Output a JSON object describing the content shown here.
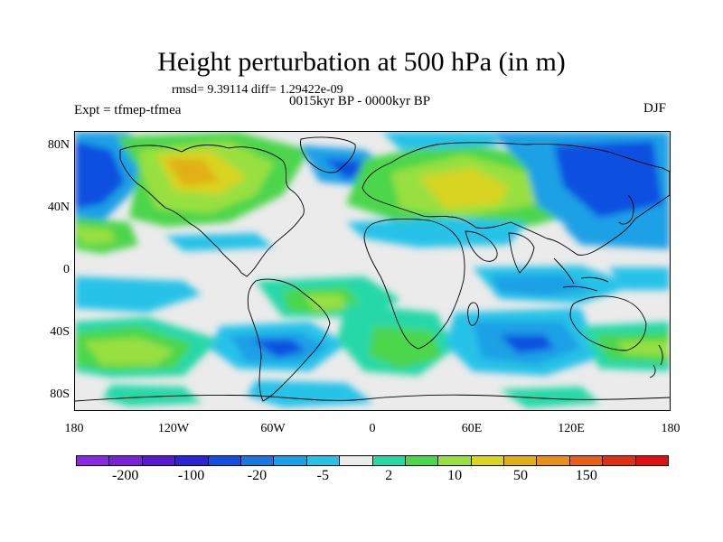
{
  "header": {
    "title": "Height perturbation at 500 hPa (in m)",
    "stats": "rmsd= 9.39114 diff= 1.29422e-09",
    "period": "0015kyr BP - 0000kyr BP",
    "experiment": "Expt = tfmep-tfmea",
    "season": "DJF"
  },
  "map": {
    "projection": "cylindrical-equidistant",
    "lon_range": [
      -180,
      180
    ],
    "lat_range": [
      -90,
      90
    ],
    "background_color": "#ebebeb",
    "coastline_color": "#000000",
    "lat_ticks": [
      {
        "value": 80,
        "label": "80N"
      },
      {
        "value": 40,
        "label": "40N"
      },
      {
        "value": 0,
        "label": "0"
      },
      {
        "value": -40,
        "label": "40S"
      },
      {
        "value": -80,
        "label": "80S"
      }
    ],
    "lon_ticks": [
      {
        "value": -180,
        "label": "180"
      },
      {
        "value": -120,
        "label": "120W"
      },
      {
        "value": -60,
        "label": "60W"
      },
      {
        "value": 0,
        "label": "0"
      },
      {
        "value": 60,
        "label": "60E"
      },
      {
        "value": 120,
        "label": "120E"
      },
      {
        "value": 180,
        "label": "180"
      }
    ]
  },
  "colorbar": {
    "colors": [
      "#8a2be2",
      "#7a22d8",
      "#5a18d0",
      "#2a24d4",
      "#1050e0",
      "#1878e0",
      "#1aa0e6",
      "#28c2e8",
      "#ebebeb",
      "#28d8a8",
      "#4cd64c",
      "#98e040",
      "#d8d420",
      "#e2b014",
      "#e8901a",
      "#e86018",
      "#e03012",
      "#e01010"
    ],
    "labels": [
      "-200",
      "-100",
      "-20",
      "-5",
      "2",
      "10",
      "50",
      "150"
    ]
  }
}
